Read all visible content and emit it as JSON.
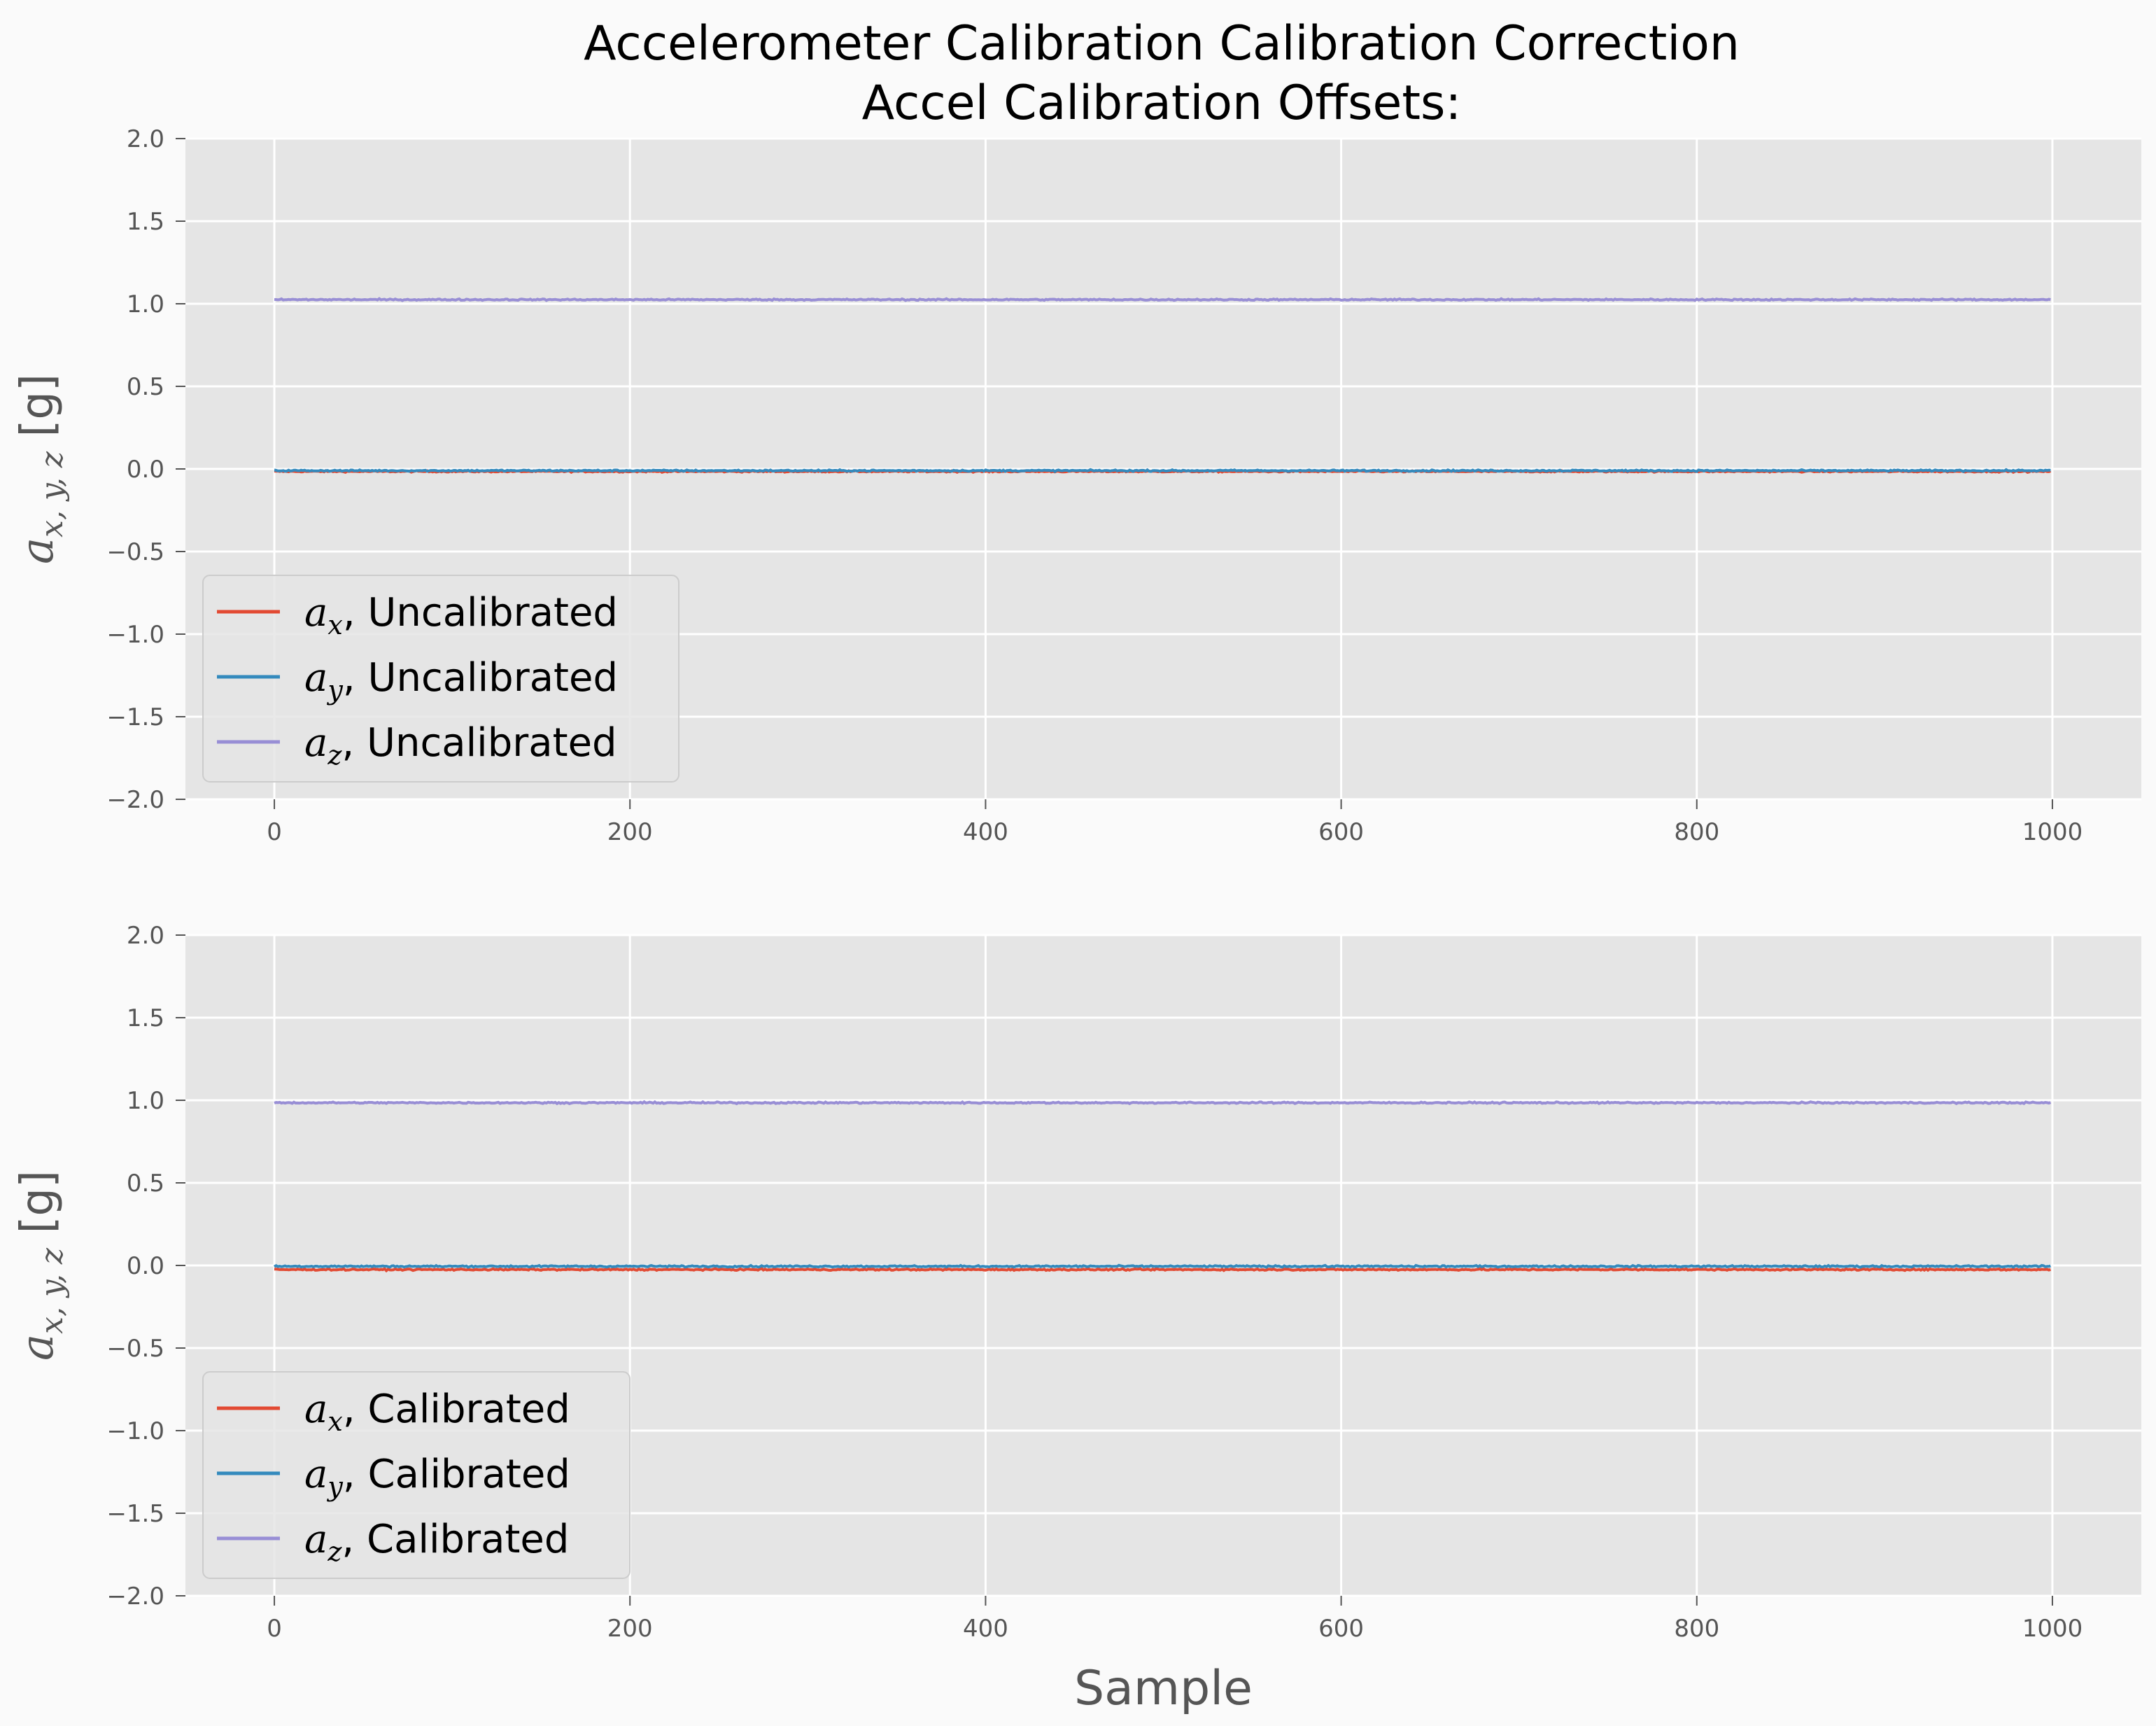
{
  "figure": {
    "title_line1": "Accelerometer Calibration Calibration Correction",
    "title_line2": "Accel Calibration Offsets:",
    "colors": {
      "background": "#fafafa",
      "axes_bg": "#e5e5e5",
      "grid": "#ffffff",
      "ax": "#e24a33",
      "ay": "#348abd",
      "az": "#988ed5"
    }
  },
  "chart_data": [
    {
      "type": "line",
      "xlabel": "",
      "ylabel_symbol": "a",
      "ylabel_subscript": "x, y, z",
      "ylabel_unit": " [g]",
      "xlim": [
        -50,
        1050
      ],
      "ylim": [
        -2.0,
        2.0
      ],
      "grid": true,
      "legend_position": "lower-left",
      "xticks": [
        0,
        200,
        400,
        600,
        800,
        1000
      ],
      "yticks": [
        -2.0,
        -1.5,
        -1.0,
        -0.5,
        0.0,
        0.5,
        1.0,
        1.5,
        2.0
      ],
      "x": {
        "start": 0,
        "end": 999,
        "count": 1000
      },
      "series": [
        {
          "name_symbol": "a",
          "name_sub": "x",
          "name_text": ", Uncalibrated",
          "mean": -0.015,
          "noise": 0.004,
          "color": "#e24a33"
        },
        {
          "name_symbol": "a",
          "name_sub": "y",
          "name_text": ", Uncalibrated",
          "mean": -0.01,
          "noise": 0.004,
          "color": "#348abd"
        },
        {
          "name_symbol": "a",
          "name_sub": "z",
          "name_text": ", Uncalibrated",
          "mean": 1.025,
          "noise": 0.004,
          "color": "#988ed5"
        }
      ]
    },
    {
      "type": "line",
      "xlabel": "Sample",
      "ylabel_symbol": "a",
      "ylabel_subscript": "x, y, z",
      "ylabel_unit": " [g]",
      "xlim": [
        -50,
        1050
      ],
      "ylim": [
        -2.0,
        2.0
      ],
      "grid": true,
      "legend_position": "lower-left",
      "xticks": [
        0,
        200,
        400,
        600,
        800,
        1000
      ],
      "yticks": [
        -2.0,
        -1.5,
        -1.0,
        -0.5,
        0.0,
        0.5,
        1.0,
        1.5,
        2.0
      ],
      "x": {
        "start": 0,
        "end": 999,
        "count": 1000
      },
      "series": [
        {
          "name_symbol": "a",
          "name_sub": "x",
          "name_text": ", Calibrated",
          "mean": -0.025,
          "noise": 0.004,
          "color": "#e24a33"
        },
        {
          "name_symbol": "a",
          "name_sub": "y",
          "name_text": ", Calibrated",
          "mean": -0.005,
          "noise": 0.004,
          "color": "#348abd"
        },
        {
          "name_symbol": "a",
          "name_sub": "z",
          "name_text": ", Calibrated",
          "mean": 0.985,
          "noise": 0.004,
          "color": "#988ed5"
        }
      ]
    }
  ]
}
